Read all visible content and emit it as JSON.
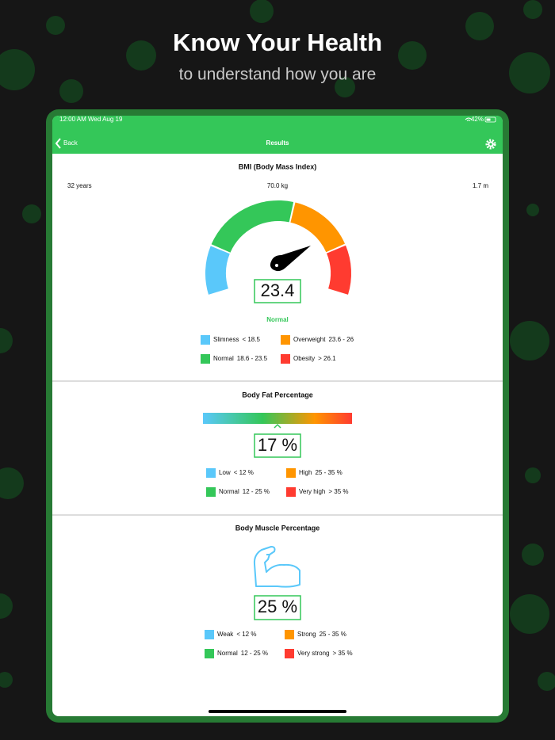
{
  "header": {
    "title": "Know Your Health",
    "subtitle": "to understand how you are"
  },
  "status_bar": {
    "time": "12:00 AM",
    "date": "Wed Aug 19",
    "battery": "42%"
  },
  "nav": {
    "back": "Back",
    "title": "Results"
  },
  "bmi": {
    "title": "BMI (Body Mass Index)",
    "age": "32 years",
    "weight": "70.0 kg",
    "height": "1.7 m",
    "value": "23.4",
    "status": "Normal",
    "legend": [
      {
        "name": "Slimness",
        "range": "< 18.5"
      },
      {
        "name": "Overweight",
        "range": "23.6 - 26"
      },
      {
        "name": "Normal",
        "range": "18.6 - 23.5"
      },
      {
        "name": "Obesity",
        "range": "> 26.1"
      }
    ]
  },
  "body_fat": {
    "title": "Body Fat Percentage",
    "value": "17 %",
    "legend": [
      {
        "name": "Low",
        "range": "< 12 %"
      },
      {
        "name": "High",
        "range": "25 - 35 %"
      },
      {
        "name": "Normal",
        "range": "12 - 25 %"
      },
      {
        "name": "Very high",
        "range": "> 35 %"
      }
    ]
  },
  "body_muscle": {
    "title": "Body Muscle Percentage",
    "value": "25 %",
    "legend": [
      {
        "name": "Weak",
        "range": "< 12 %"
      },
      {
        "name": "Strong",
        "range": "25 - 35 %"
      },
      {
        "name": "Normal",
        "range": "12 - 25 %"
      },
      {
        "name": "Very strong",
        "range": "> 35 %"
      }
    ]
  }
}
